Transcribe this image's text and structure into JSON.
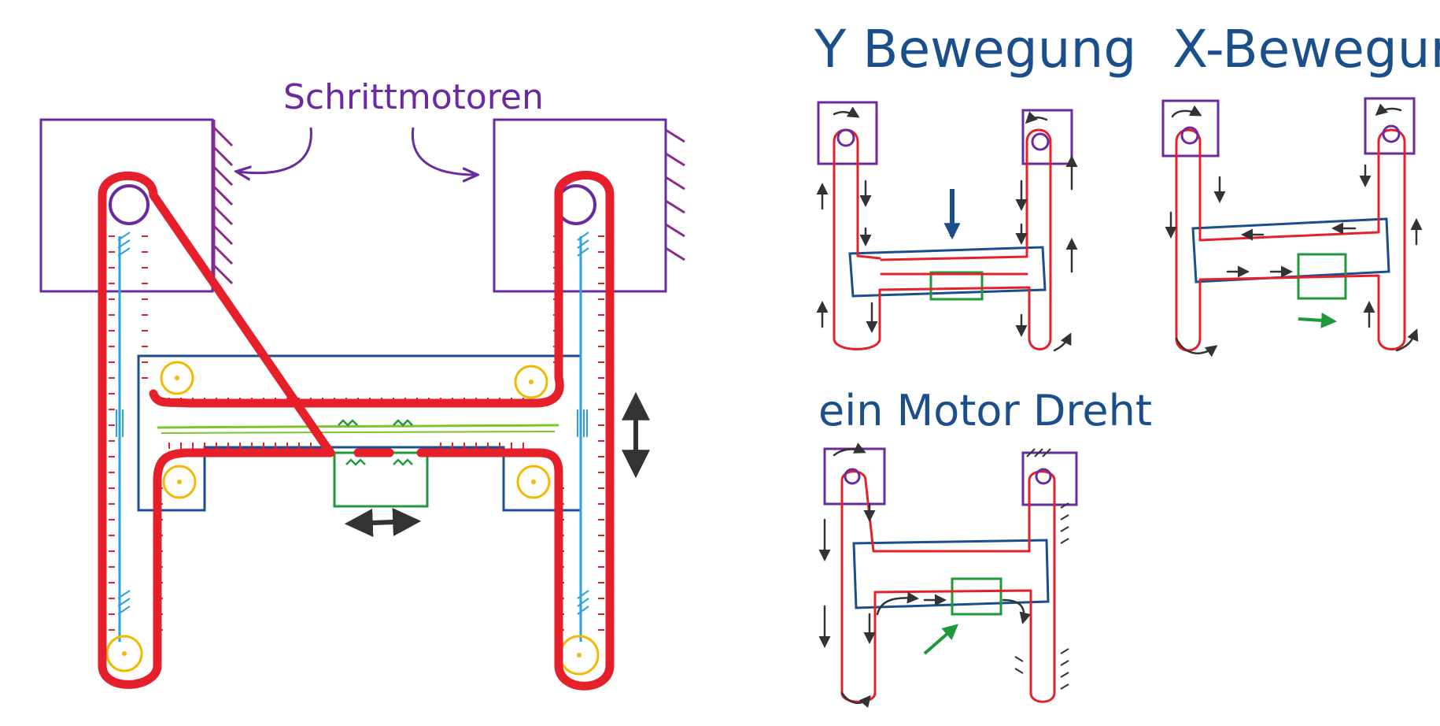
{
  "labels": {
    "motors": "Schrittmotoren",
    "y_move": "Y Bewegung",
    "x_move": "X-Bewegung",
    "one_motor": "ein Motor Dreht"
  },
  "colors": {
    "belt": "#e5202b",
    "motor": "#6a2aa0",
    "carriage": "#1a4f8c",
    "rail": "#2aa2dc",
    "toolhead": "#1f9a3a",
    "pulley": "#f3b800",
    "arrow": "#333333"
  }
}
